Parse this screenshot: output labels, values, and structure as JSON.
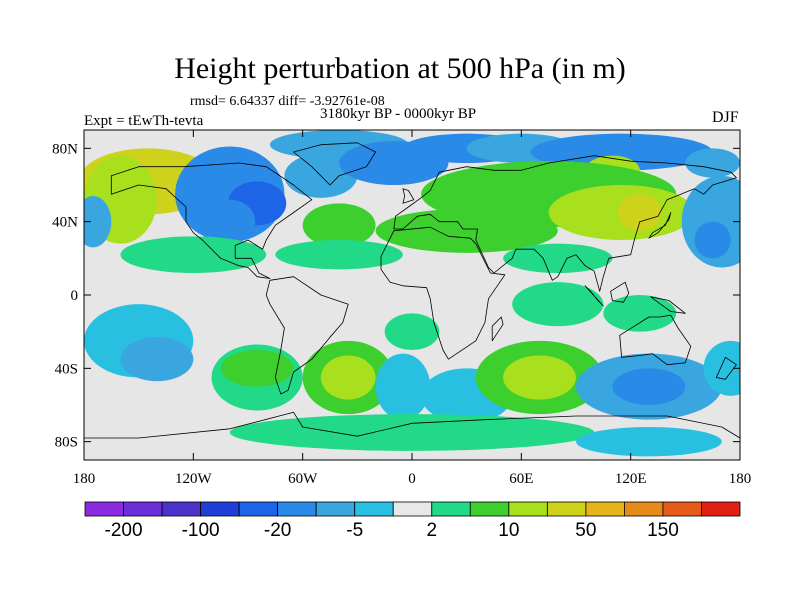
{
  "title": "Height perturbation at 500 hPa (in m)",
  "stats_line": "rmsd= 6.64337 diff= -3.92761e-08",
  "period": "3180kyr BP - 0000kyr BP",
  "expt_label": "Expt = tEwTh-tevta",
  "season": "DJF",
  "map": {
    "lon_range": [
      -180,
      180
    ],
    "lat_range": [
      -90,
      90
    ],
    "lat_ticks": [
      {
        "value": 80,
        "label": "80N"
      },
      {
        "value": 40,
        "label": "40N"
      },
      {
        "value": 0,
        "label": "0"
      },
      {
        "value": -40,
        "label": "40S"
      },
      {
        "value": -80,
        "label": "80S"
      }
    ],
    "lon_ticks": [
      {
        "value": -180,
        "label": "180"
      },
      {
        "value": -120,
        "label": "120W"
      },
      {
        "value": -60,
        "label": "60W"
      },
      {
        "value": 0,
        "label": "0"
      },
      {
        "value": 60,
        "label": "60E"
      },
      {
        "value": 120,
        "label": "120E"
      },
      {
        "value": 180,
        "label": "180"
      }
    ],
    "background_color": "#e6e6e6"
  },
  "colorbar": {
    "colors": [
      "#8a2be2",
      "#6a2fd8",
      "#4b32c8",
      "#1f3fd6",
      "#1e64e6",
      "#2a8ae8",
      "#3aa6e0",
      "#29bfe0",
      "#e8e8e8",
      "#22d987",
      "#3ccf2e",
      "#a8e01e",
      "#cfd21a",
      "#e5b41a",
      "#e68a1a",
      "#e65a1a",
      "#e02010"
    ],
    "labels": [
      {
        "after_box": 1,
        "text": "-200"
      },
      {
        "after_box": 3,
        "text": "-100"
      },
      {
        "after_box": 5,
        "text": "-20"
      },
      {
        "after_box": 7,
        "text": "-5"
      },
      {
        "after_box": 9,
        "text": "2"
      },
      {
        "after_box": 11,
        "text": "10"
      },
      {
        "after_box": 13,
        "text": "50"
      },
      {
        "after_box": 15,
        "text": "150"
      }
    ]
  },
  "anomalies": [
    {
      "lon": -145,
      "lat": 62,
      "rx": 38,
      "ry": 18,
      "level": 4
    },
    {
      "lon": -160,
      "lat": 52,
      "rx": 20,
      "ry": 24,
      "level": 3
    },
    {
      "lon": -175,
      "lat": 40,
      "rx": 10,
      "ry": 14,
      "level": -2
    },
    {
      "lon": -100,
      "lat": 55,
      "rx": 30,
      "ry": 26,
      "level": -3
    },
    {
      "lon": -85,
      "lat": 50,
      "rx": 16,
      "ry": 12,
      "level": -4
    },
    {
      "lon": -100,
      "lat": 40,
      "rx": 14,
      "ry": 12,
      "level": -3
    },
    {
      "lon": -50,
      "lat": 65,
      "rx": 20,
      "ry": 12,
      "level": -2
    },
    {
      "lon": -40,
      "lat": 82,
      "rx": 38,
      "ry": 8,
      "level": -2
    },
    {
      "lon": -10,
      "lat": 72,
      "rx": 30,
      "ry": 12,
      "level": -3
    },
    {
      "lon": 30,
      "lat": 80,
      "rx": 35,
      "ry": 8,
      "level": -3
    },
    {
      "lon": 60,
      "lat": 80,
      "rx": 30,
      "ry": 8,
      "level": -2
    },
    {
      "lon": 115,
      "lat": 78,
      "rx": 50,
      "ry": 10,
      "level": -3
    },
    {
      "lon": 110,
      "lat": 68,
      "rx": 15,
      "ry": 8,
      "level": 3
    },
    {
      "lon": 165,
      "lat": 72,
      "rx": 15,
      "ry": 8,
      "level": -2
    },
    {
      "lon": 75,
      "lat": 55,
      "rx": 70,
      "ry": 18,
      "level": 2
    },
    {
      "lon": 115,
      "lat": 45,
      "rx": 40,
      "ry": 15,
      "level": 3
    },
    {
      "lon": 125,
      "lat": 45,
      "rx": 12,
      "ry": 10,
      "level": 4
    },
    {
      "lon": 30,
      "lat": 35,
      "rx": 50,
      "ry": 12,
      "level": 2
    },
    {
      "lon": -40,
      "lat": 38,
      "rx": 20,
      "ry": 12,
      "level": 2
    },
    {
      "lon": -120,
      "lat": 22,
      "rx": 40,
      "ry": 10,
      "level": 1
    },
    {
      "lon": -40,
      "lat": 22,
      "rx": 35,
      "ry": 8,
      "level": 1
    },
    {
      "lon": 170,
      "lat": 40,
      "rx": 22,
      "ry": 25,
      "level": -2
    },
    {
      "lon": 165,
      "lat": 30,
      "rx": 10,
      "ry": 10,
      "level": -3
    },
    {
      "lon": 80,
      "lat": 20,
      "rx": 30,
      "ry": 8,
      "level": 1
    },
    {
      "lon": 80,
      "lat": -5,
      "rx": 25,
      "ry": 12,
      "level": 1
    },
    {
      "lon": 125,
      "lat": -10,
      "rx": 20,
      "ry": 10,
      "level": 1
    },
    {
      "lon": -150,
      "lat": -25,
      "rx": 30,
      "ry": 20,
      "level": -1
    },
    {
      "lon": -140,
      "lat": -35,
      "rx": 20,
      "ry": 12,
      "level": -2
    },
    {
      "lon": -85,
      "lat": -45,
      "rx": 25,
      "ry": 18,
      "level": 1
    },
    {
      "lon": -85,
      "lat": -40,
      "rx": 20,
      "ry": 10,
      "level": 2
    },
    {
      "lon": -35,
      "lat": -45,
      "rx": 25,
      "ry": 20,
      "level": 2
    },
    {
      "lon": -35,
      "lat": -45,
      "rx": 15,
      "ry": 12,
      "level": 3
    },
    {
      "lon": -5,
      "lat": -50,
      "rx": 15,
      "ry": 18,
      "level": -1
    },
    {
      "lon": 0,
      "lat": -20,
      "rx": 15,
      "ry": 10,
      "level": 1
    },
    {
      "lon": 30,
      "lat": -55,
      "rx": 25,
      "ry": 15,
      "level": -1
    },
    {
      "lon": 70,
      "lat": -45,
      "rx": 35,
      "ry": 20,
      "level": 2
    },
    {
      "lon": 70,
      "lat": -45,
      "rx": 20,
      "ry": 12,
      "level": 3
    },
    {
      "lon": 130,
      "lat": -50,
      "rx": 40,
      "ry": 18,
      "level": -2
    },
    {
      "lon": 130,
      "lat": -50,
      "rx": 20,
      "ry": 10,
      "level": -3
    },
    {
      "lon": 175,
      "lat": -40,
      "rx": 15,
      "ry": 15,
      "level": -1
    },
    {
      "lon": 0,
      "lat": -75,
      "rx": 100,
      "ry": 10,
      "level": 1
    },
    {
      "lon": 130,
      "lat": -80,
      "rx": 40,
      "ry": 8,
      "level": -1
    }
  ],
  "continents": [
    {
      "name": "north-america",
      "coords": [
        [
          -165,
          65
        ],
        [
          -150,
          70
        ],
        [
          -125,
          70
        ],
        [
          -95,
          72
        ],
        [
          -80,
          70
        ],
        [
          -65,
          60
        ],
        [
          -55,
          52
        ],
        [
          -65,
          45
        ],
        [
          -75,
          38
        ],
        [
          -80,
          30
        ],
        [
          -82,
          25
        ],
        [
          -90,
          30
        ],
        [
          -97,
          27
        ],
        [
          -97,
          20
        ],
        [
          -88,
          20
        ],
        [
          -84,
          12
        ],
        [
          -78,
          9
        ],
        [
          -85,
          10
        ],
        [
          -90,
          15
        ],
        [
          -95,
          16
        ],
        [
          -105,
          20
        ],
        [
          -115,
          30
        ],
        [
          -120,
          34
        ],
        [
          -124,
          40
        ],
        [
          -124,
          48
        ],
        [
          -135,
          58
        ],
        [
          -150,
          60
        ],
        [
          -165,
          55
        ]
      ]
    },
    {
      "name": "greenland",
      "coords": [
        [
          -45,
          60
        ],
        [
          -40,
          65
        ],
        [
          -25,
          70
        ],
        [
          -20,
          78
        ],
        [
          -30,
          83
        ],
        [
          -50,
          82
        ],
        [
          -65,
          78
        ],
        [
          -55,
          70
        ],
        [
          -50,
          65
        ]
      ]
    },
    {
      "name": "south-america",
      "coords": [
        [
          -78,
          8
        ],
        [
          -65,
          10
        ],
        [
          -50,
          0
        ],
        [
          -35,
          -5
        ],
        [
          -38,
          -15
        ],
        [
          -45,
          -23
        ],
        [
          -55,
          -35
        ],
        [
          -65,
          -42
        ],
        [
          -68,
          -52
        ],
        [
          -72,
          -54
        ],
        [
          -75,
          -45
        ],
        [
          -72,
          -30
        ],
        [
          -70,
          -18
        ],
        [
          -78,
          -5
        ],
        [
          -80,
          0
        ]
      ]
    },
    {
      "name": "eurasia",
      "coords": [
        [
          -10,
          36
        ],
        [
          -9,
          43
        ],
        [
          -2,
          48
        ],
        [
          5,
          53
        ],
        [
          10,
          57
        ],
        [
          15,
          67
        ],
        [
          30,
          70
        ],
        [
          45,
          68
        ],
        [
          60,
          68
        ],
        [
          75,
          72
        ],
        [
          100,
          76
        ],
        [
          120,
          73
        ],
        [
          140,
          72
        ],
        [
          160,
          70
        ],
        [
          175,
          67
        ],
        [
          178,
          64
        ],
        [
          165,
          60
        ],
        [
          160,
          55
        ],
        [
          155,
          58
        ],
        [
          140,
          52
        ],
        [
          135,
          43
        ],
        [
          125,
          40
        ],
        [
          122,
          30
        ],
        [
          120,
          22
        ],
        [
          108,
          20
        ],
        [
          105,
          10
        ],
        [
          103,
          2
        ],
        [
          100,
          13
        ],
        [
          95,
          16
        ],
        [
          90,
          22
        ],
        [
          85,
          20
        ],
        [
          80,
          10
        ],
        [
          77,
          8
        ],
        [
          72,
          20
        ],
        [
          67,
          25
        ],
        [
          57,
          25
        ],
        [
          55,
          20
        ],
        [
          45,
          12
        ],
        [
          42,
          15
        ],
        [
          35,
          30
        ],
        [
          36,
          36
        ],
        [
          28,
          36
        ],
        [
          25,
          40
        ],
        [
          15,
          40
        ],
        [
          10,
          44
        ],
        [
          3,
          43
        ],
        [
          -5,
          36
        ]
      ]
    },
    {
      "name": "africa",
      "coords": [
        [
          -17,
          21
        ],
        [
          -10,
          35
        ],
        [
          10,
          37
        ],
        [
          20,
          32
        ],
        [
          32,
          31
        ],
        [
          35,
          28
        ],
        [
          43,
          12
        ],
        [
          51,
          11
        ],
        [
          42,
          -2
        ],
        [
          40,
          -15
        ],
        [
          35,
          -25
        ],
        [
          20,
          -35
        ],
        [
          17,
          -30
        ],
        [
          12,
          -15
        ],
        [
          10,
          -2
        ],
        [
          8,
          4
        ],
        [
          -5,
          5
        ],
        [
          -12,
          7
        ],
        [
          -17,
          14
        ]
      ]
    },
    {
      "name": "australia",
      "coords": [
        [
          114,
          -22
        ],
        [
          115,
          -34
        ],
        [
          125,
          -33
        ],
        [
          132,
          -32
        ],
        [
          140,
          -38
        ],
        [
          150,
          -37
        ],
        [
          153,
          -28
        ],
        [
          146,
          -18
        ],
        [
          142,
          -11
        ],
        [
          136,
          -12
        ],
        [
          130,
          -12
        ],
        [
          122,
          -17
        ]
      ]
    },
    {
      "name": "madagascar",
      "coords": [
        [
          44,
          -25
        ],
        [
          50,
          -16
        ],
        [
          49,
          -12
        ],
        [
          44,
          -17
        ]
      ]
    },
    {
      "name": "new-guinea",
      "coords": [
        [
          131,
          -1
        ],
        [
          141,
          -3
        ],
        [
          150,
          -10
        ],
        [
          142,
          -9
        ],
        [
          135,
          -4
        ]
      ]
    },
    {
      "name": "borneo",
      "coords": [
        [
          109,
          2
        ],
        [
          117,
          7
        ],
        [
          119,
          1
        ],
        [
          116,
          -4
        ],
        [
          110,
          -3
        ]
      ]
    },
    {
      "name": "sumatra",
      "coords": [
        [
          95,
          5
        ],
        [
          105,
          -6
        ],
        [
          102,
          -3
        ],
        [
          98,
          2
        ]
      ]
    },
    {
      "name": "japan",
      "coords": [
        [
          130,
          31
        ],
        [
          135,
          34
        ],
        [
          141,
          41
        ],
        [
          142,
          45
        ],
        [
          139,
          38
        ],
        [
          132,
          34
        ]
      ]
    },
    {
      "name": "great-britain",
      "coords": [
        [
          -5,
          50
        ],
        [
          1,
          52
        ],
        [
          -2,
          57
        ],
        [
          -5,
          58
        ],
        [
          -4,
          54
        ]
      ]
    },
    {
      "name": "new-zealand",
      "coords": [
        [
          172,
          -34
        ],
        [
          178,
          -38
        ],
        [
          172,
          -46
        ],
        [
          167,
          -45
        ]
      ]
    },
    {
      "name": "antarctica",
      "coords": [
        [
          -180,
          -90
        ],
        [
          -180,
          -78
        ],
        [
          -150,
          -78
        ],
        [
          -100,
          -73
        ],
        [
          -65,
          -64
        ],
        [
          -60,
          -72
        ],
        [
          -30,
          -77
        ],
        [
          0,
          -70
        ],
        [
          40,
          -68
        ],
        [
          90,
          -66
        ],
        [
          140,
          -66
        ],
        [
          170,
          -72
        ],
        [
          180,
          -78
        ],
        [
          180,
          -90
        ]
      ]
    }
  ]
}
